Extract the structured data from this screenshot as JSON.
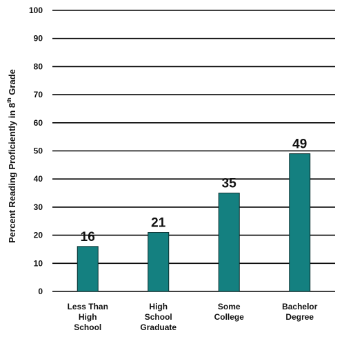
{
  "chart_data": {
    "type": "bar",
    "categories": [
      [
        "Less Than",
        "High",
        "School"
      ],
      [
        "High",
        "School",
        "Graduate"
      ],
      [
        "Some",
        "College"
      ],
      [
        "Bachelor",
        "Degree"
      ]
    ],
    "values": [
      16,
      21,
      35,
      49
    ],
    "ylabel_main": "Percent Reading Proficiently in 8",
    "ylabel_sup": "th",
    "ylabel_end": " Grade",
    "ylim": [
      0,
      100
    ],
    "yticks": [
      0,
      10,
      20,
      30,
      40,
      50,
      60,
      70,
      80,
      90,
      100
    ],
    "grid": true,
    "bar_color": "#148080",
    "bar_outline": "#0a2e2e",
    "axis_color": "#000000"
  }
}
